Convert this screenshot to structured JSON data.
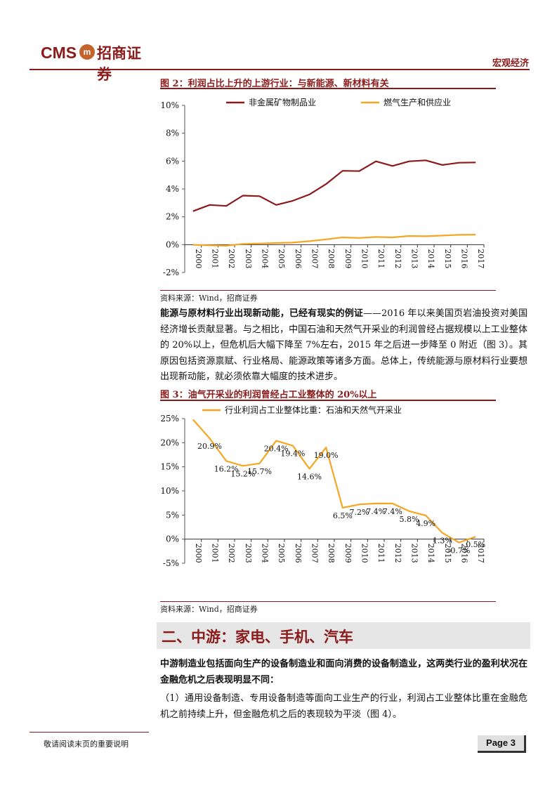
{
  "header": {
    "logo_latin": "CMS",
    "logo_seal": "m",
    "logo_chinese": "招商证券",
    "section_label": "宏观经济"
  },
  "figure2": {
    "title": "图 2：利润占比上升的上游行业：与新能源、新材料有关",
    "source": "资料来源：Wind，招商证券"
  },
  "paragraph1": {
    "bold": "能源与原材料行业出现新动能，已经有现实的例证",
    "text": "——2016 年以来美国页岩油投资对美国经济增长贡献显著。与之相比，中国石油和天然气开采业的利润曾经占据规模以上工业整体的 20%以上，但危机后大幅下降至 7%左右，2015 年之后进一步降至 0 附近（图 3）。其原因包括资源禀赋、行业格局、能源政策等诸多方面。总体上，传统能源与原材料行业要想出现新动能，就必须依靠大幅度的技术进步。"
  },
  "figure3": {
    "title": "图 3：油气开采业的利润曾经占工业整体的 20%以上",
    "source": "资料来源：Wind，招商证券"
  },
  "section": {
    "title": "二、中游：家电、手机、汽车"
  },
  "paragraph2": {
    "bold": "中游制造业包括面向生产的设备制造业和面向消费的设备制造业，这两类行业的盈利状况在金融危机之后表现明显不同："
  },
  "paragraph3": {
    "text": "（1）通用设备制造、专用设备制造等面向工业生产的行业，利润占工业整体比重在金融危机之前持续上升，但金融危机之后的表现较为平淡（图 4）。"
  },
  "footer": {
    "note": "敬请阅读末页的重要说明",
    "page": "Page 3"
  },
  "chart_data": [
    {
      "type": "line",
      "x": [
        "2000",
        "2001",
        "2002",
        "2003",
        "2004",
        "2005",
        "2006",
        "2007",
        "2008",
        "2009",
        "2010",
        "2011",
        "2012",
        "2013",
        "2014",
        "2015",
        "2016",
        "2017"
      ],
      "ylim": [
        -2,
        10
      ],
      "yticks": [
        -2,
        0,
        2,
        4,
        6,
        8,
        10
      ],
      "ytick_labels": [
        "-2%",
        "0%",
        "2%",
        "4%",
        "6%",
        "8%",
        "10%"
      ],
      "legend": "top",
      "series": [
        {
          "name": "非金属矿物制品业",
          "color": "#8b1a1a",
          "values": [
            2.4,
            2.85,
            2.78,
            3.52,
            3.48,
            2.85,
            3.15,
            3.6,
            4.35,
            5.3,
            5.28,
            5.98,
            5.65,
            5.98,
            6.05,
            5.72,
            5.88,
            5.9
          ]
        },
        {
          "name": "燃气生产和供应业",
          "color": "#f5a623",
          "values": [
            -0.02,
            -0.05,
            -0.08,
            0.05,
            0.08,
            0.12,
            0.15,
            0.25,
            0.38,
            0.52,
            0.48,
            0.55,
            0.52,
            0.62,
            0.6,
            0.65,
            0.7,
            0.72
          ]
        }
      ]
    },
    {
      "type": "line",
      "x": [
        "2000",
        "2001",
        "2002",
        "2003",
        "2004",
        "2005",
        "2006",
        "2007",
        "2008",
        "2009",
        "2010",
        "2011",
        "2012",
        "2013",
        "2014",
        "2015",
        "2016",
        "2017"
      ],
      "ylim": [
        -5,
        25
      ],
      "yticks": [
        -5,
        0,
        5,
        10,
        15,
        20,
        25
      ],
      "ytick_labels": [
        "-5%",
        "0%",
        "5%",
        "10%",
        "15%",
        "20%",
        "25%"
      ],
      "legend": "top",
      "series": [
        {
          "name": "行业利润占工业整体比重：石油和天然气开采业",
          "color": "#f5a623",
          "values": [
            24.8,
            20.9,
            16.2,
            15.2,
            15.7,
            20.4,
            19.4,
            14.6,
            19.0,
            6.5,
            7.2,
            7.4,
            7.4,
            5.8,
            4.9,
            1.3,
            -0.7,
            0.5
          ],
          "labels": [
            "",
            "20.9%",
            "16.2%",
            "15.2%",
            "15.7%",
            "20.4%",
            "19.4%",
            "14.6%",
            "19.0%",
            "6.5%",
            "7.2%",
            "7.4%",
            "7.4%",
            "5.8%",
            "4.9%",
            "1.3%",
            "-0.7%",
            "0.5%"
          ]
        }
      ]
    }
  ]
}
